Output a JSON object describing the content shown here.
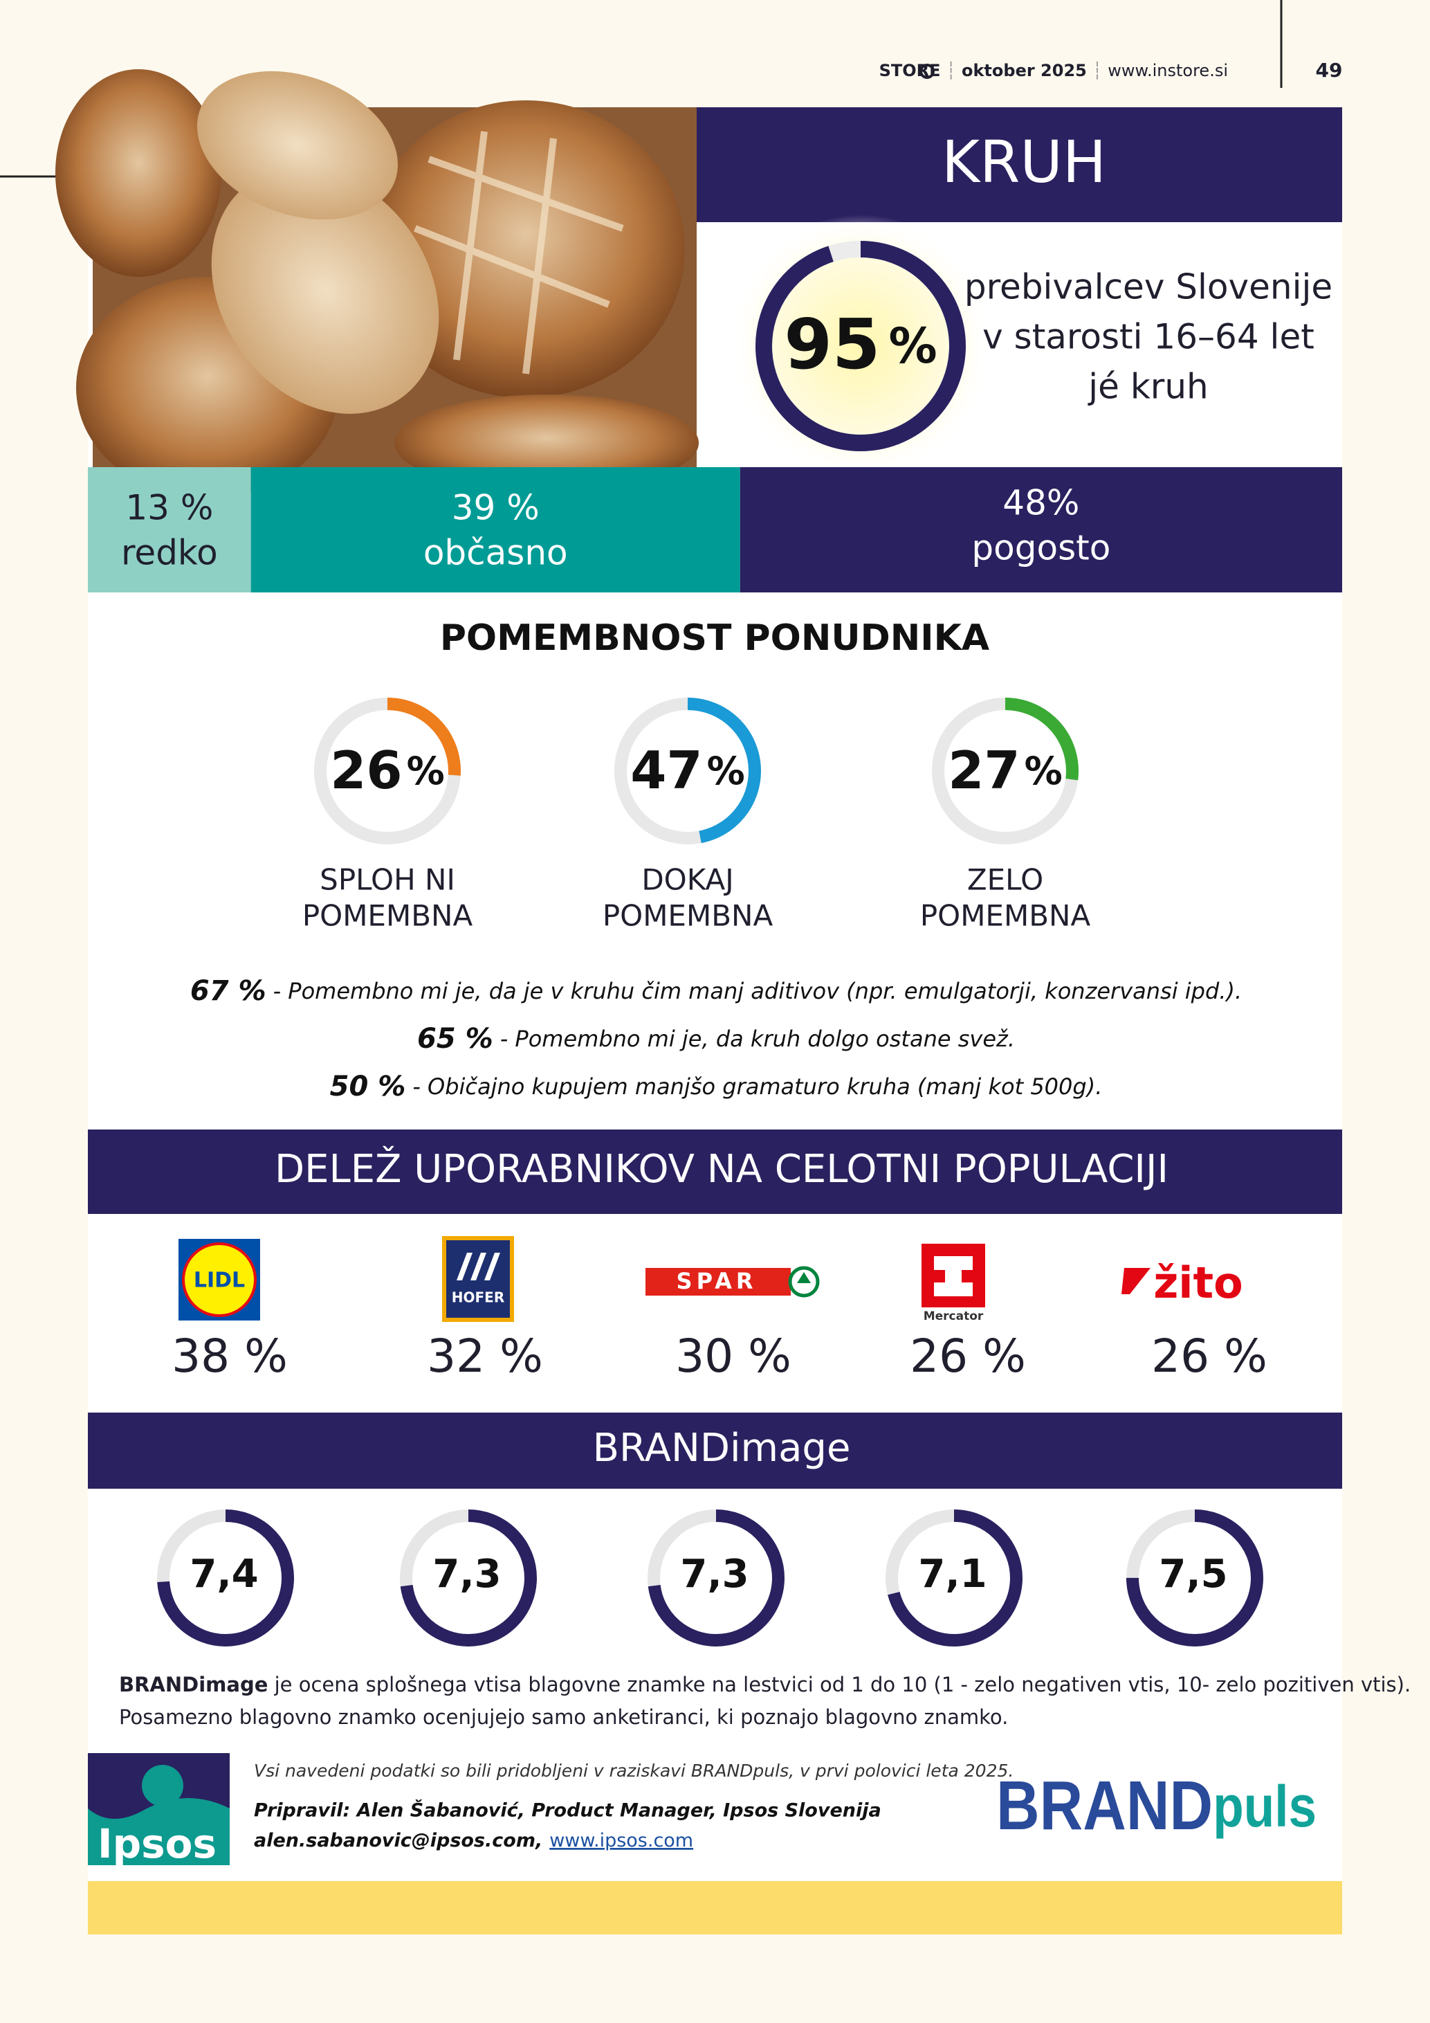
{
  "header": {
    "logo": "STORE",
    "issue": "oktober 2025",
    "website": "www.instore.si",
    "page": "49"
  },
  "hero": {
    "title": "KRUH",
    "share": {
      "value": 95,
      "unit": "%"
    },
    "description": [
      "prebivalcev Slovenije",
      "v starosti 16–64 let",
      "jé kruh"
    ]
  },
  "percent_range": [
    0,
    100
  ],
  "frequency": [
    {
      "value": 13,
      "label": "13 %",
      "name": "redko",
      "color": "#8fd0c5",
      "text_color": "#1f1f2e"
    },
    {
      "value": 39,
      "label": "39 %",
      "name": "občasno",
      "color": "#009b95",
      "text_color": "#ffffff"
    },
    {
      "value": 48,
      "label": "48%",
      "name": "pogosto",
      "color": "#2a2160",
      "text_color": "#ffffff"
    }
  ],
  "provider_importance": {
    "title": "POMEMBNOST PONUDNIKA",
    "items": [
      {
        "value": 26,
        "unit": "%",
        "label": [
          "SPLOH NI",
          "POMEMBNA"
        ],
        "color": "#ee7d1c"
      },
      {
        "value": 47,
        "unit": "%",
        "label": [
          "DOKAJ",
          "POMEMBNA"
        ],
        "color": "#1a9ad6"
      },
      {
        "value": 27,
        "unit": "%",
        "label": [
          "ZELO",
          "POMEMBNA"
        ],
        "color": "#3aaa35"
      }
    ]
  },
  "statements": [
    {
      "share": "67 %",
      "text": "- Pomembno mi je, da je v kruhu čim manj aditivov (npr. emulgatorji, konzervansi ipd.)."
    },
    {
      "share": "65 %",
      "text": "- Pomembno mi je, da kruh dolgo ostane svež."
    },
    {
      "share": "50 %",
      "text": "- Običajno kupujem manjšo gramaturo kruha (manj kot 500g)."
    }
  ],
  "user_share": {
    "title": "DELEŽ UPORABNIKOV NA CELOTNI POPULACIJI",
    "brands": [
      {
        "logo": "LIDL",
        "share": "38 %"
      },
      {
        "logo": "HOFER",
        "share": "32 %"
      },
      {
        "logo": "SPAR",
        "share": "30 %"
      },
      {
        "logo": "Mercator",
        "share": "26 %"
      },
      {
        "logo": "žito",
        "share": "26 %"
      }
    ]
  },
  "brand_image": {
    "title": "BRANDimage",
    "range": [
      0,
      10
    ],
    "color": "#2a2160",
    "scores": [
      {
        "value": 7.4,
        "label": "7,4"
      },
      {
        "value": 7.3,
        "label": "7,3"
      },
      {
        "value": 7.3,
        "label": "7,3"
      },
      {
        "value": 7.1,
        "label": "7,1"
      },
      {
        "value": 7.5,
        "label": "7,5"
      }
    ]
  },
  "note": {
    "term": "BRANDimage",
    "text": " je ocena splošnega vtisa blagovne znamke na lestvici od 1 do 10 (1 - zelo negativen vtis, 10- zelo pozitiven vtis).",
    "line2": "Posamezno blagovno znamko ocenjujejo samo anketiranci, ki poznajo blagovno znamko."
  },
  "source": {
    "survey": "Vsi navedeni podatki so bili pridobljeni v raziskavi BRANDpuls, v prvi polovici leta  2025.",
    "author": "Pripravil: Alen Šabanović, Product Manager, Ipsos Slovenija",
    "email": "alen.sabanovic@ipsos.com,",
    "link": "www.ipsos.com"
  },
  "logos": {
    "ipsos": "Ipsos",
    "brandpuls": [
      "BRAND",
      "puls"
    ]
  }
}
